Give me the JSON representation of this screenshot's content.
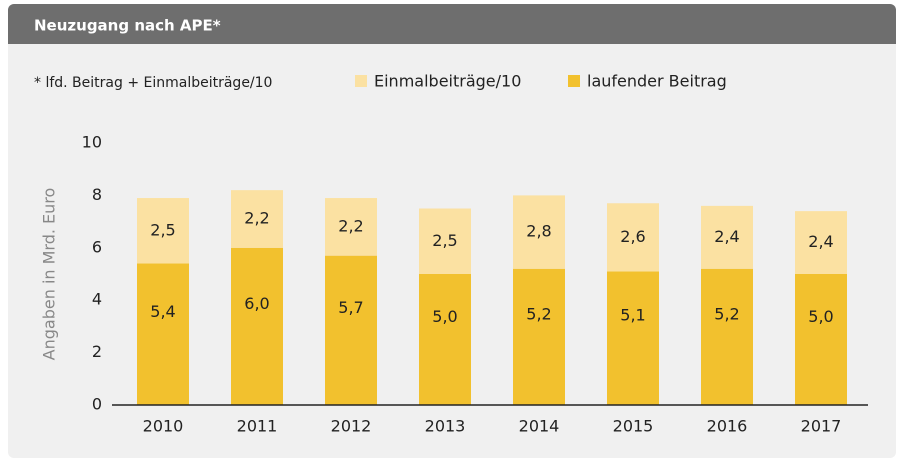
{
  "chart_data": {
    "type": "stacked_bar",
    "title": "Neuzugang nach APE*",
    "note": "* lfd. Beitrag + Einmalbeiträge/10",
    "y_label": "Angaben in Mrd. Euro",
    "categories": [
      "2010",
      "2011",
      "2012",
      "2013",
      "2014",
      "2015",
      "2016",
      "2017"
    ],
    "series": [
      {
        "name": "laufender Beitrag",
        "color": "#f2c12e",
        "values": [
          5.4,
          6.0,
          5.7,
          5.0,
          5.2,
          5.1,
          5.2,
          5.0
        ],
        "value_labels": [
          "5,4",
          "6,0",
          "5,7",
          "5,0",
          "5,2",
          "5,1",
          "5,2",
          "5,0"
        ]
      },
      {
        "name": "Einmalbeiträge/10",
        "color": "#fbe1a2",
        "values": [
          2.5,
          2.2,
          2.2,
          2.5,
          2.8,
          2.6,
          2.4,
          2.4
        ],
        "value_labels": [
          "2,5",
          "2,2",
          "2,2",
          "2,5",
          "2,8",
          "2,6",
          "2,4",
          "2,4"
        ]
      }
    ],
    "ylim": [
      0,
      10
    ],
    "yticks": [
      0,
      2,
      4,
      6,
      8,
      10
    ],
    "grid": false
  }
}
